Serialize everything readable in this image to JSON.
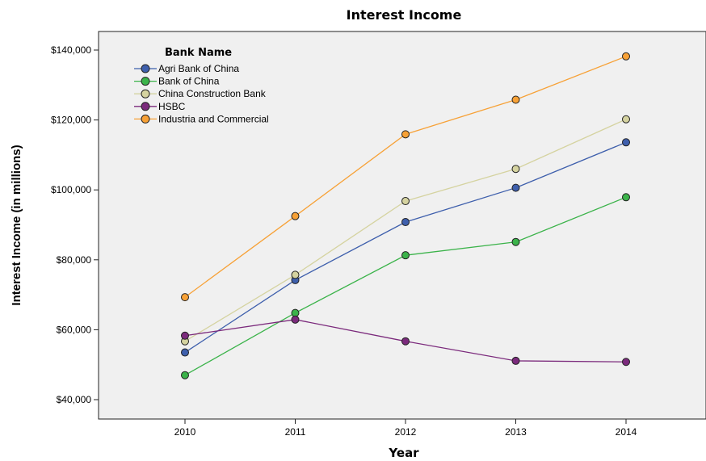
{
  "chart_data": {
    "type": "line",
    "title": "Interest Income",
    "xlabel": "Year",
    "ylabel": "Interest Income (in millions)",
    "legend_title": "Bank Name",
    "legend_placement": "top-left",
    "grid": false,
    "x": [
      "2010",
      "2011",
      "2012",
      "2013",
      "2014"
    ],
    "ylim": [
      40000,
      140000
    ],
    "y_ticks": [
      40000,
      60000,
      80000,
      100000,
      120000,
      140000
    ],
    "y_tick_labels": [
      "$40,000",
      "$60,000",
      "$80,000",
      "$100,000",
      "$120,000",
      "$140,000"
    ],
    "series": [
      {
        "name": "Agri Bank of China",
        "color": "#3e5fac",
        "values": [
          53500,
          74200,
          90800,
          100600,
          113600
        ]
      },
      {
        "name": "Bank of China",
        "color": "#3bb34a",
        "values": [
          47000,
          64800,
          81300,
          85100,
          97900
        ]
      },
      {
        "name": "China Construction Bank",
        "color": "#d5d3a0",
        "values": [
          56700,
          75700,
          96800,
          106000,
          120200
        ]
      },
      {
        "name": "HSBC",
        "color": "#7b2a7c",
        "values": [
          58300,
          62900,
          56700,
          51100,
          50800
        ]
      },
      {
        "name": "Industria and Commercial",
        "color": "#f7a136",
        "values": [
          69300,
          92500,
          115900,
          125800,
          138200
        ]
      }
    ]
  }
}
